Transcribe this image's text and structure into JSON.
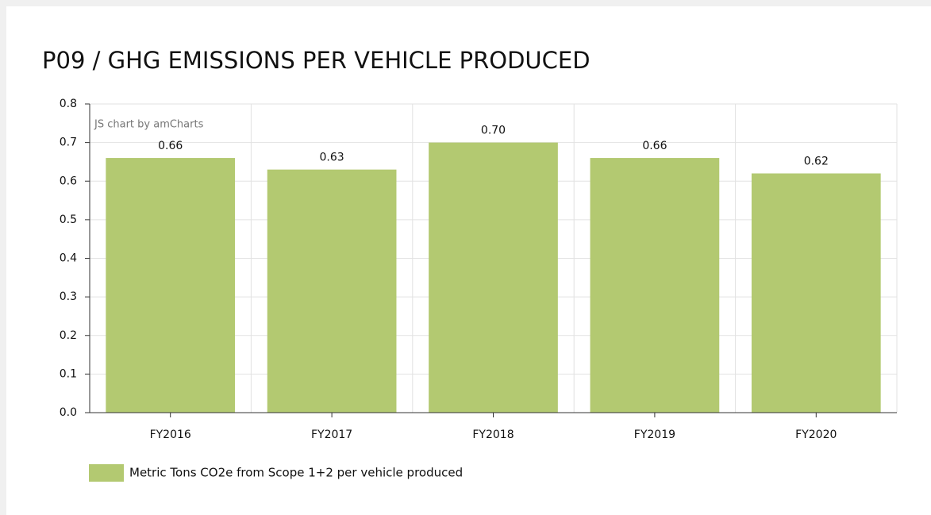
{
  "chart_data": {
    "type": "bar",
    "title": "P09 / GHG EMISSIONS PER VEHICLE PRODUCED",
    "watermark": "JS chart by amCharts",
    "categories": [
      "FY2016",
      "FY2017",
      "FY2018",
      "FY2019",
      "FY2020"
    ],
    "series": [
      {
        "name": "Metric Tons CO2e from Scope 1+2 per vehicle produced",
        "color": "#b3c971",
        "values": [
          0.66,
          0.63,
          0.7,
          0.66,
          0.62
        ],
        "value_labels": [
          "0.66",
          "0.63",
          "0.70",
          "0.66",
          "0.62"
        ]
      }
    ],
    "ylim": [
      0,
      0.8
    ],
    "yticks": [
      {
        "value": 0,
        "label": "0.0"
      },
      0.1,
      0.2,
      0.3,
      0.4,
      0.5,
      0.6,
      0.7,
      0.8
    ],
    "grid": true,
    "legend": "bottom-left"
  }
}
